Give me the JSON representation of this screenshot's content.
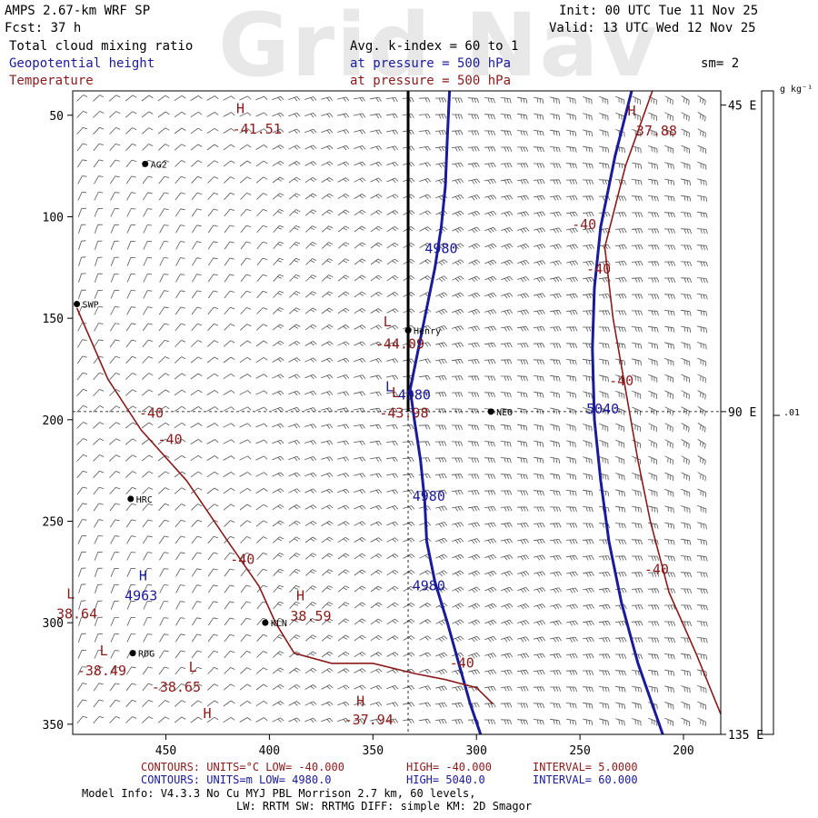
{
  "watermark": "Grid Nav",
  "header": {
    "model": "AMPS 2.67-km WRF SP",
    "fcst": "Fcst:   37 h",
    "init": "Init: 00 UTC Tue 11 Nov 25",
    "valid": "Valid: 13 UTC Wed 12 Nov 25",
    "field1": "Total cloud mixing ratio",
    "field2": "Geopotential height",
    "field3": "Temperature",
    "avg": "Avg. k-index =  60 to   1",
    "press1": "at pressure =  500 hPa",
    "press2": "at pressure =  500 hPa",
    "sm": "sm= 2",
    "units": "g kg⁻¹",
    "colorbar_value": ".01"
  },
  "colors": {
    "temperature": "#8b1a1a",
    "height": "#1a1a9c",
    "axis": "#000000"
  },
  "chart_data": {
    "type": "contour",
    "title": "Total cloud mixing ratio / Geopotential height / Temperature (500 hPa)",
    "x_axis": {
      "ticks": [
        450,
        400,
        350,
        300,
        250,
        200
      ],
      "range": [
        495,
        182
      ],
      "label": ""
    },
    "y_axis": {
      "ticks": [
        50,
        100,
        150,
        200,
        250,
        300,
        350
      ],
      "range": [
        38,
        355
      ],
      "label": ""
    },
    "right_axis_labels": [
      {
        "text": "45 E",
        "y": 45
      },
      {
        "text": "90 E",
        "y": 196
      },
      {
        "text": "135 E",
        "y": 355
      }
    ],
    "cross_section": {
      "x": 333,
      "y": 196
    },
    "stations": [
      {
        "name": "AG2",
        "x": 460,
        "y": 74
      },
      {
        "name": "SWP",
        "x": 493,
        "y": 143
      },
      {
        "name": "Henry",
        "x": 333,
        "y": 156
      },
      {
        "name": "NEO",
        "x": 293,
        "y": 196
      },
      {
        "name": "HRC",
        "x": 467,
        "y": 239
      },
      {
        "name": "KLN",
        "x": 402,
        "y": 300
      },
      {
        "name": "RDG",
        "x": 466,
        "y": 315
      }
    ],
    "annotations": [
      {
        "text": "H",
        "x": 414,
        "y": 49,
        "series": "temperature"
      },
      {
        "text": "-41.51",
        "x": 406,
        "y": 59,
        "series": "temperature"
      },
      {
        "text": "H",
        "x": 225,
        "y": 50,
        "series": "temperature"
      },
      {
        "text": "37.88",
        "x": 213,
        "y": 60,
        "series": "temperature"
      },
      {
        "text": "-40",
        "x": 248,
        "y": 106,
        "series": "temperature"
      },
      {
        "text": "-40",
        "x": 241,
        "y": 128,
        "series": "temperature"
      },
      {
        "text": "-40",
        "x": 230,
        "y": 183,
        "series": "temperature"
      },
      {
        "text": "L",
        "x": 343,
        "y": 154,
        "series": "temperature"
      },
      {
        "text": "-44.09",
        "x": 337,
        "y": 165,
        "series": "temperature"
      },
      {
        "text": "L",
        "x": 339,
        "y": 189,
        "series": "temperature"
      },
      {
        "text": "-43.98",
        "x": 335,
        "y": 199,
        "series": "temperature"
      },
      {
        "text": "-40",
        "x": 457,
        "y": 199,
        "series": "temperature"
      },
      {
        "text": "-40",
        "x": 448,
        "y": 212,
        "series": "temperature"
      },
      {
        "text": "-40",
        "x": 413,
        "y": 271,
        "series": "temperature"
      },
      {
        "text": "H",
        "x": 385,
        "y": 289,
        "series": "temperature"
      },
      {
        "text": "38.59",
        "x": 380,
        "y": 299,
        "series": "temperature"
      },
      {
        "text": "-40",
        "x": 307,
        "y": 322,
        "series": "temperature"
      },
      {
        "text": "-40",
        "x": 213,
        "y": 276,
        "series": "temperature"
      },
      {
        "text": "L",
        "x": 496,
        "y": 288,
        "series": "temperature"
      },
      {
        "text": "38.64",
        "x": 493,
        "y": 298,
        "series": "temperature"
      },
      {
        "text": "L",
        "x": 480,
        "y": 316,
        "series": "temperature"
      },
      {
        "text": "-38.49",
        "x": 481,
        "y": 326,
        "series": "temperature"
      },
      {
        "text": "L",
        "x": 437,
        "y": 324,
        "series": "temperature"
      },
      {
        "text": "-38.65",
        "x": 445,
        "y": 334,
        "series": "temperature"
      },
      {
        "text": "H",
        "x": 430,
        "y": 347,
        "series": "temperature"
      },
      {
        "text": "H",
        "x": 356,
        "y": 341,
        "series": "temperature"
      },
      {
        "text": "-37.94",
        "x": 352,
        "y": 350,
        "series": "temperature"
      },
      {
        "text": "4980",
        "x": 317,
        "y": 118,
        "series": "height"
      },
      {
        "text": "L",
        "x": 342,
        "y": 186,
        "series": "height"
      },
      {
        "text": "4980",
        "x": 330,
        "y": 190,
        "series": "height"
      },
      {
        "text": "5040",
        "x": 239,
        "y": 197,
        "series": "height"
      },
      {
        "text": "4980",
        "x": 323,
        "y": 240,
        "series": "height"
      },
      {
        "text": "4980",
        "x": 323,
        "y": 284,
        "series": "height"
      },
      {
        "text": "H",
        "x": 461,
        "y": 279,
        "series": "height"
      },
      {
        "text": "4963",
        "x": 462,
        "y": 289,
        "series": "height"
      }
    ],
    "series": [
      {
        "name": "Geopotential height 4980 m",
        "units": "m",
        "color": "#1a1a9c",
        "low": 4980.0,
        "high": 5040.0,
        "interval": 60.0,
        "contours": [
          {
            "level": 4980,
            "points": [
              [
                313,
                38
              ],
              [
                314,
                60
              ],
              [
                315,
                85
              ],
              [
                317,
                105
              ],
              [
                320,
                125
              ],
              [
                324,
                145
              ],
              [
                328,
                165
              ],
              [
                332,
                185
              ],
              [
                330,
                200
              ],
              [
                327,
                220
              ],
              [
                325,
                240
              ],
              [
                324,
                260
              ],
              [
                320,
                280
              ],
              [
                314,
                300
              ],
              [
                308,
                322
              ],
              [
                303,
                340
              ],
              [
                298,
                355
              ]
            ]
          }
        ]
      },
      {
        "name": "Geopotential height 5040 m",
        "units": "m",
        "color": "#1a1a9c",
        "contours": [
          {
            "level": 5040,
            "points": [
              [
                225,
                38
              ],
              [
                233,
                70
              ],
              [
                240,
                105
              ],
              [
                243,
                135
              ],
              [
                244,
                165
              ],
              [
                243,
                200
              ],
              [
                240,
                230
              ],
              [
                236,
                260
              ],
              [
                230,
                290
              ],
              [
                222,
                320
              ],
              [
                210,
                355
              ]
            ]
          }
        ]
      },
      {
        "name": "Temperature -40 C",
        "units": "C",
        "color": "#8b1a1a",
        "low": -40.0,
        "high": -40.0,
        "interval": 5.0,
        "contours": [
          {
            "level": -40,
            "points": [
              [
                493,
                145
              ],
              [
                478,
                180
              ],
              [
                462,
                205
              ],
              [
                440,
                230
              ],
              [
                430,
                245
              ],
              [
                420,
                260
              ],
              [
                405,
                282
              ],
              [
                397,
                300
              ],
              [
                388,
                315
              ],
              [
                370,
                320
              ],
              [
                350,
                320
              ],
              [
                330,
                325
              ],
              [
                315,
                328
              ],
              [
                300,
                332
              ],
              [
                292,
                340
              ]
            ]
          },
          {
            "level": -40,
            "points": [
              [
                215,
                38
              ],
              [
                228,
                75
              ],
              [
                238,
                115
              ],
              [
                234,
                150
              ],
              [
                228,
                185
              ],
              [
                222,
                220
              ],
              [
                216,
                250
              ],
              [
                207,
                285
              ],
              [
                194,
                315
              ],
              [
                182,
                345
              ]
            ]
          }
        ]
      }
    ],
    "legend": [
      {
        "series": "Temperature",
        "line": "CONTOURS:  UNITS=°C  LOW= -40.000",
        "high": "HIGH= -40.000",
        "interval": "INTERVAL=   5.0000"
      },
      {
        "series": "Geopotential height",
        "line": "CONTOURS:  UNITS=m   LOW=  4980.0",
        "high": "HIGH=  5040.0",
        "interval": "INTERVAL=   60.000"
      }
    ]
  },
  "footer": {
    "model_info": "Model Info: V4.3.3    No Cu    MYJ PBL   Morrison         2.7 km,  60 levels,",
    "physics": "LW: RRTM SW: RRTMG   DIFF: simple KM: 2D Smagor"
  }
}
